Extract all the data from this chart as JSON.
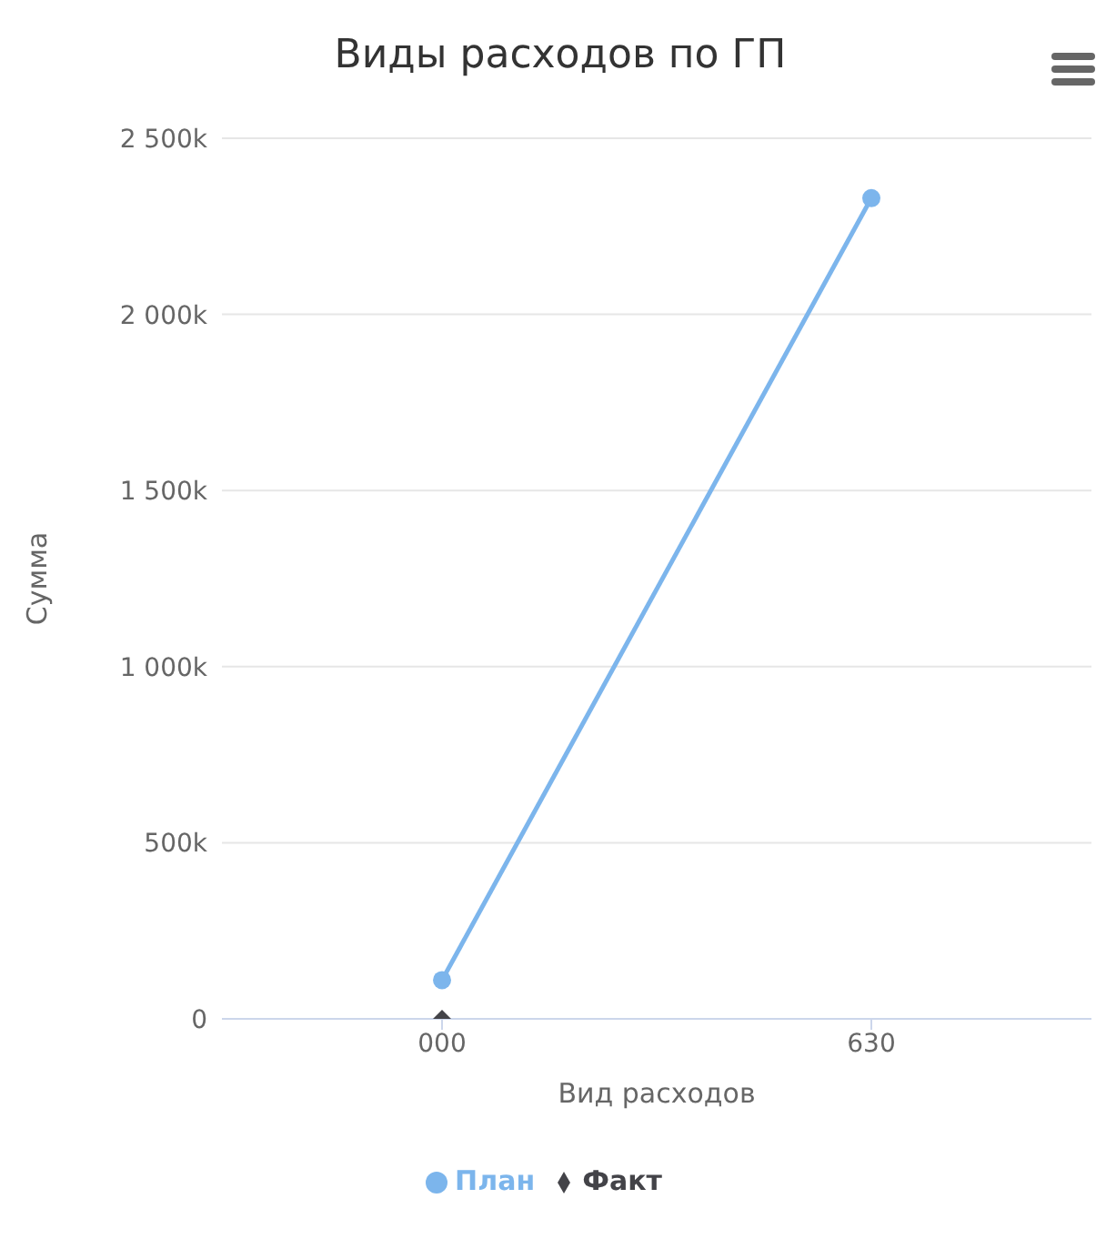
{
  "chart_data": {
    "type": "line",
    "title": "Виды расходов по ГП",
    "xlabel": "Вид расходов",
    "ylabel": "Сумма",
    "categories": [
      "000",
      "630"
    ],
    "series": [
      {
        "name": "План",
        "color": "#7cb5ec",
        "marker": "circle",
        "values": [
          110,
          2330
        ]
      },
      {
        "name": "Факт",
        "color": "#434348",
        "marker": "diamond",
        "values": [
          0,
          null
        ]
      }
    ],
    "ylim": [
      0,
      2500
    ],
    "yticks": [
      {
        "value": 0,
        "label": "0"
      },
      {
        "value": 500,
        "label": "500k"
      },
      {
        "value": 1000,
        "label": "1 000k"
      },
      {
        "value": 1500,
        "label": "1 500k"
      },
      {
        "value": 2000,
        "label": "2 000k"
      },
      {
        "value": 2500,
        "label": "2 500k"
      }
    ],
    "grid": "y",
    "legend": "bottom"
  }
}
